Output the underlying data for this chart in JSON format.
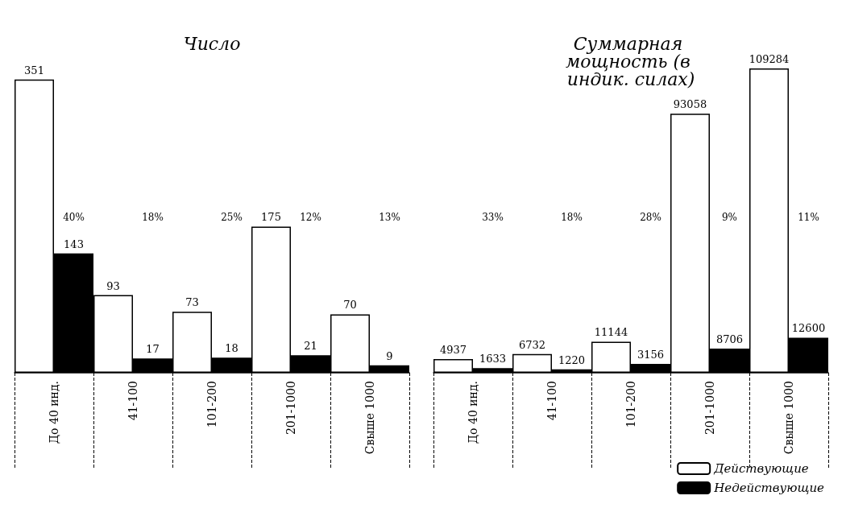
{
  "chart_data": [
    {
      "type": "bar",
      "title": "Число",
      "categories": [
        "До 40 инд.",
        "41-100",
        "101-200",
        "201-1000",
        "Свыше 1000"
      ],
      "series": [
        {
          "color": "#ffffff",
          "values": [
            351,
            93,
            73,
            175,
            70
          ]
        },
        {
          "color": "#000000",
          "values": [
            143,
            17,
            18,
            21,
            9
          ]
        }
      ],
      "annotations": [
        "40%",
        "18%",
        "25%",
        "12%",
        "13%"
      ],
      "data_labels": true,
      "grid": false,
      "legend": false
    },
    {
      "type": "bar",
      "title": "Суммарная мощность (в индик. силах)",
      "categories": [
        "До 40 инд.",
        "41-100",
        "101-200",
        "201-1000",
        "Свыше 1000"
      ],
      "series": [
        {
          "name": "Действующие",
          "color": "#ffffff",
          "values": [
            4937,
            6732,
            11144,
            93058,
            109284
          ]
        },
        {
          "name": "Недействующие",
          "color": "#000000",
          "values": [
            1633,
            1220,
            3156,
            8706,
            12600
          ]
        }
      ],
      "annotations": [
        "33%",
        "18%",
        "28%",
        "9%",
        "11%"
      ],
      "data_labels": true,
      "grid": false,
      "legend": "bottom right"
    }
  ]
}
